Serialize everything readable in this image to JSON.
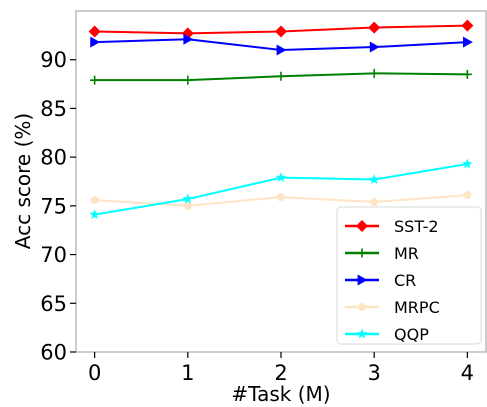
{
  "chart_data": {
    "type": "line",
    "title": "",
    "xlabel": "#Task (M)",
    "ylabel": "Acc score (%)",
    "x": [
      0,
      1,
      2,
      3,
      4
    ],
    "xlim": [
      -0.2,
      4.2
    ],
    "ylim": [
      60,
      95
    ],
    "xticks": [
      "0",
      "1",
      "2",
      "3",
      "4"
    ],
    "yticks": [
      "60",
      "65",
      "70",
      "75",
      "80",
      "85",
      "90"
    ],
    "grid": false,
    "legend_position": "lower-right",
    "series": [
      {
        "name": "SST-2",
        "color": "#ff0000",
        "marker": "diamond",
        "values": [
          92.9,
          92.7,
          92.9,
          93.3,
          93.5
        ]
      },
      {
        "name": "MR",
        "color": "#008000",
        "marker": "plus",
        "values": [
          87.9,
          87.9,
          88.3,
          88.6,
          88.5
        ]
      },
      {
        "name": "CR",
        "color": "#0000ff",
        "marker": "triangle-right",
        "values": [
          91.8,
          92.1,
          91.0,
          91.3,
          91.8
        ]
      },
      {
        "name": "MRPC",
        "color": "#ffe4c4",
        "marker": "pentagon",
        "values": [
          75.6,
          75.0,
          75.9,
          75.4,
          76.1
        ]
      },
      {
        "name": "QQP",
        "color": "#00ffff",
        "marker": "star",
        "values": [
          74.1,
          75.7,
          77.9,
          77.7,
          79.3
        ]
      }
    ]
  }
}
